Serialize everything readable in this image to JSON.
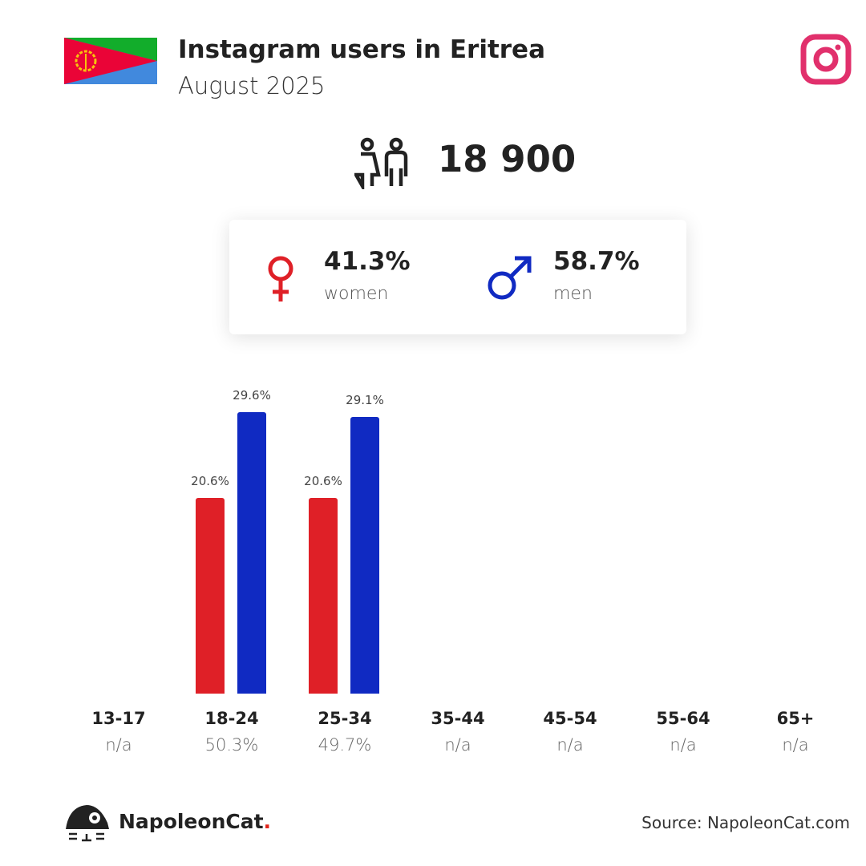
{
  "header": {
    "title": "Instagram users in Eritrea",
    "subtitle": "August 2025",
    "flag_icon": "eritrea-flag-icon",
    "platform_icon": "instagram-icon"
  },
  "total": {
    "value": "18 900",
    "icon": "users-icon"
  },
  "gender": {
    "women": {
      "pct": "41.3%",
      "label": "women"
    },
    "men": {
      "pct": "58.7%",
      "label": "men"
    }
  },
  "chart_data": {
    "type": "bar",
    "categories": [
      "13-17",
      "18-24",
      "25-34",
      "35-44",
      "45-54",
      "55-64",
      "65+"
    ],
    "category_shares": [
      "n/a",
      "50.3%",
      "49.7%",
      "n/a",
      "n/a",
      "n/a",
      "n/a"
    ],
    "series": [
      {
        "name": "women",
        "color": "#DF2027",
        "values": [
          null,
          20.6,
          20.6,
          null,
          null,
          null,
          null
        ],
        "labels": [
          "",
          "20.6%",
          "20.6%",
          "",
          "",
          "",
          ""
        ]
      },
      {
        "name": "men",
        "color": "#102AC2",
        "values": [
          null,
          29.6,
          29.1,
          null,
          null,
          null,
          null
        ],
        "labels": [
          "",
          "29.6%",
          "29.1%",
          "",
          "",
          "",
          ""
        ]
      }
    ]
  },
  "footer": {
    "brand": "NapoleonCat",
    "brand_dot": ".",
    "source": "Source: NapoleonCat.com"
  }
}
